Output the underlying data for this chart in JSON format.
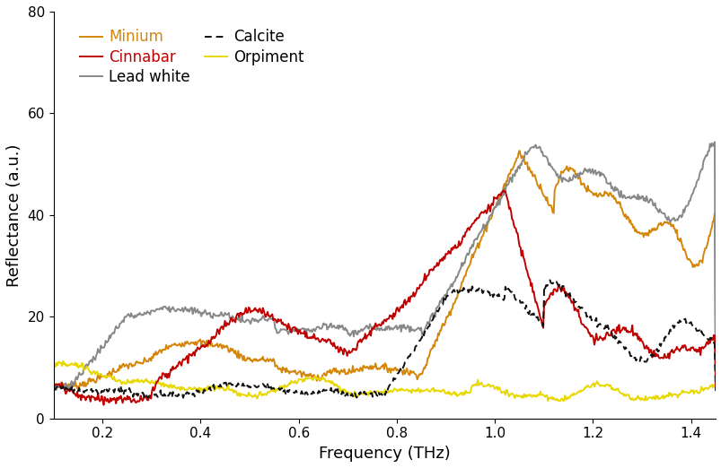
{
  "title": "",
  "xlabel": "Frequency (THz)",
  "ylabel": "Reflectance (a.u.)",
  "xlim": [
    0.1,
    1.45
  ],
  "ylim": [
    0,
    80
  ],
  "xticks": [
    0.2,
    0.4,
    0.6,
    0.8,
    1.0,
    1.2,
    1.4
  ],
  "yticks": [
    0,
    20,
    40,
    60,
    80
  ],
  "colors": {
    "minium": "#D4860A",
    "lead_white": "#888888",
    "orpiment": "#E8D800",
    "cinnabar": "#C00000",
    "calcite": "#111111"
  },
  "legend_colored": [
    "Minium",
    "Cinnabar"
  ],
  "figsize": [
    8.04,
    5.22
  ],
  "dpi": 100
}
